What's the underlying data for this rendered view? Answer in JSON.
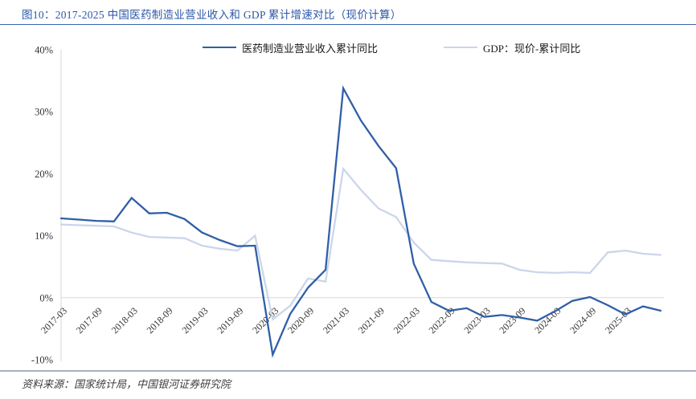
{
  "figure": {
    "title": "图10：2017-2025 中国医药制造业营业收入和 GDP 累计增速对比（现价计算）",
    "source": "资料来源：国家统计局，中国银河证券研究院"
  },
  "colors": {
    "title_text": "#2B57A7",
    "title_rule": "#3564AE",
    "footer_rule": "#A7B0C3",
    "gridline": "#D7D7D7",
    "axis_line": "#D7D7D7",
    "axis_text": "#333333"
  },
  "chart_data": {
    "type": "line",
    "title": "",
    "xlabel": "",
    "ylabel": "",
    "ylim": [
      -10,
      40
    ],
    "yticks": [
      {
        "value": 40,
        "label": "40%"
      },
      {
        "value": 30,
        "label": "30%"
      },
      {
        "value": 20,
        "label": "20%"
      },
      {
        "value": 10,
        "label": "10%"
      },
      {
        "value": 0,
        "label": "0%"
      },
      {
        "value": -10,
        "label": "-10%"
      }
    ],
    "grid": {
      "y_values": [
        0
      ]
    },
    "legend_position": "top-center",
    "x": [
      "2017-03",
      "2017-06",
      "2017-09",
      "2017-12",
      "2018-03",
      "2018-06",
      "2018-09",
      "2018-12",
      "2019-03",
      "2019-06",
      "2019-09",
      "2019-12",
      "2020-03",
      "2020-06",
      "2020-09",
      "2020-12",
      "2021-03",
      "2021-06",
      "2021-09",
      "2021-12",
      "2022-03",
      "2022-06",
      "2022-09",
      "2022-12",
      "2023-03",
      "2023-06",
      "2023-09",
      "2023-12",
      "2024-03",
      "2024-06",
      "2024-09",
      "2024-12",
      "2025-03",
      "2025-06",
      "2025-07"
    ],
    "x_tick_labels": [
      "2017-03",
      "2017-09",
      "2018-03",
      "2018-09",
      "2019-03",
      "2019-09",
      "2020-03",
      "2020-09",
      "2021-03",
      "2021-09",
      "2022-03",
      "2022-09",
      "2023-03",
      "2023-09",
      "2024-03",
      "2024-09",
      "2025-03"
    ],
    "x_tick_every": 2,
    "series": [
      {
        "name": "医药制造业营业收入累计同比",
        "color": "#2F5FA7",
        "values": [
          12.8,
          12.6,
          12.4,
          12.3,
          16.1,
          13.6,
          13.7,
          12.7,
          10.5,
          9.3,
          8.3,
          8.4,
          -9.2,
          -2.6,
          1.6,
          4.5,
          33.8,
          28.6,
          24.5,
          20.9,
          5.5,
          -0.7,
          -2.1,
          -1.7,
          -3.1,
          -2.8,
          -3.2,
          -3.7,
          -2.2,
          -0.5,
          0.1,
          -1.2,
          -2.7,
          -1.4,
          -2.1
        ]
      },
      {
        "name": "GDP：现价-累计同比",
        "color": "#CBD6EA",
        "values": [
          11.8,
          11.7,
          11.6,
          11.5,
          10.5,
          9.8,
          9.7,
          9.6,
          8.4,
          7.9,
          7.6,
          10.0,
          -3.5,
          -1.3,
          3.1,
          2.6,
          20.8,
          17.4,
          14.4,
          13.0,
          8.9,
          6.1,
          5.9,
          5.7,
          5.6,
          5.5,
          4.5,
          4.1,
          4.0,
          4.1,
          4.0,
          7.3,
          7.6,
          7.1,
          6.9
        ]
      }
    ]
  }
}
